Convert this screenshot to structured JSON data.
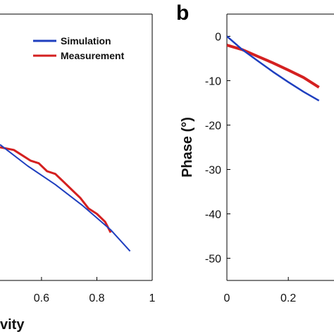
{
  "chart_data": [
    {
      "panel": "",
      "type": "line",
      "xlabel": "vity",
      "ylabel": "",
      "xlim": [
        0.45,
        1
      ],
      "ylim": [
        0,
        1
      ],
      "xticks": [
        "0.6",
        "0.8",
        "1"
      ],
      "grid": false,
      "legend": {
        "placement": "top-right"
      },
      "series": [
        {
          "name": "Simulation",
          "color": "#1f3fbf",
          "x": [
            0.45,
            0.55,
            0.65,
            0.75,
            0.85,
            0.92
          ],
          "y": [
            0.51,
            0.43,
            0.36,
            0.28,
            0.19,
            0.11
          ]
        },
        {
          "name": "Measurement",
          "color": "#d42020",
          "x": [
            0.45,
            0.5,
            0.53,
            0.56,
            0.59,
            0.62,
            0.65,
            0.68,
            0.71,
            0.74,
            0.77,
            0.8,
            0.83,
            0.85
          ],
          "y": [
            0.5,
            0.49,
            0.47,
            0.45,
            0.44,
            0.41,
            0.4,
            0.37,
            0.34,
            0.31,
            0.27,
            0.25,
            0.22,
            0.18
          ]
        }
      ]
    },
    {
      "panel": "b",
      "type": "line",
      "xlabel": "",
      "ylabel": "Phase (°)",
      "xlim": [
        0,
        0.3
      ],
      "ylim": [
        -55,
        5
      ],
      "xticks": [
        "0",
        "0.2"
      ],
      "yticks": [
        "0",
        "-10",
        "-20",
        "-30",
        "-40",
        "-50"
      ],
      "grid": false,
      "series": [
        {
          "name": "Simulation",
          "color": "#1f3fbf",
          "x": [
            0,
            0.05,
            0.1,
            0.15,
            0.2,
            0.25,
            0.3
          ],
          "y": [
            0,
            -3,
            -5.5,
            -8,
            -10.3,
            -12.5,
            -14.5
          ]
        },
        {
          "name": "Measurement",
          "color": "#d42020",
          "x": [
            0,
            0.05,
            0.1,
            0.15,
            0.2,
            0.25,
            0.3
          ],
          "y": [
            -2,
            -3,
            -4.5,
            -6,
            -7.6,
            -9.3,
            -11.5
          ]
        }
      ]
    }
  ]
}
